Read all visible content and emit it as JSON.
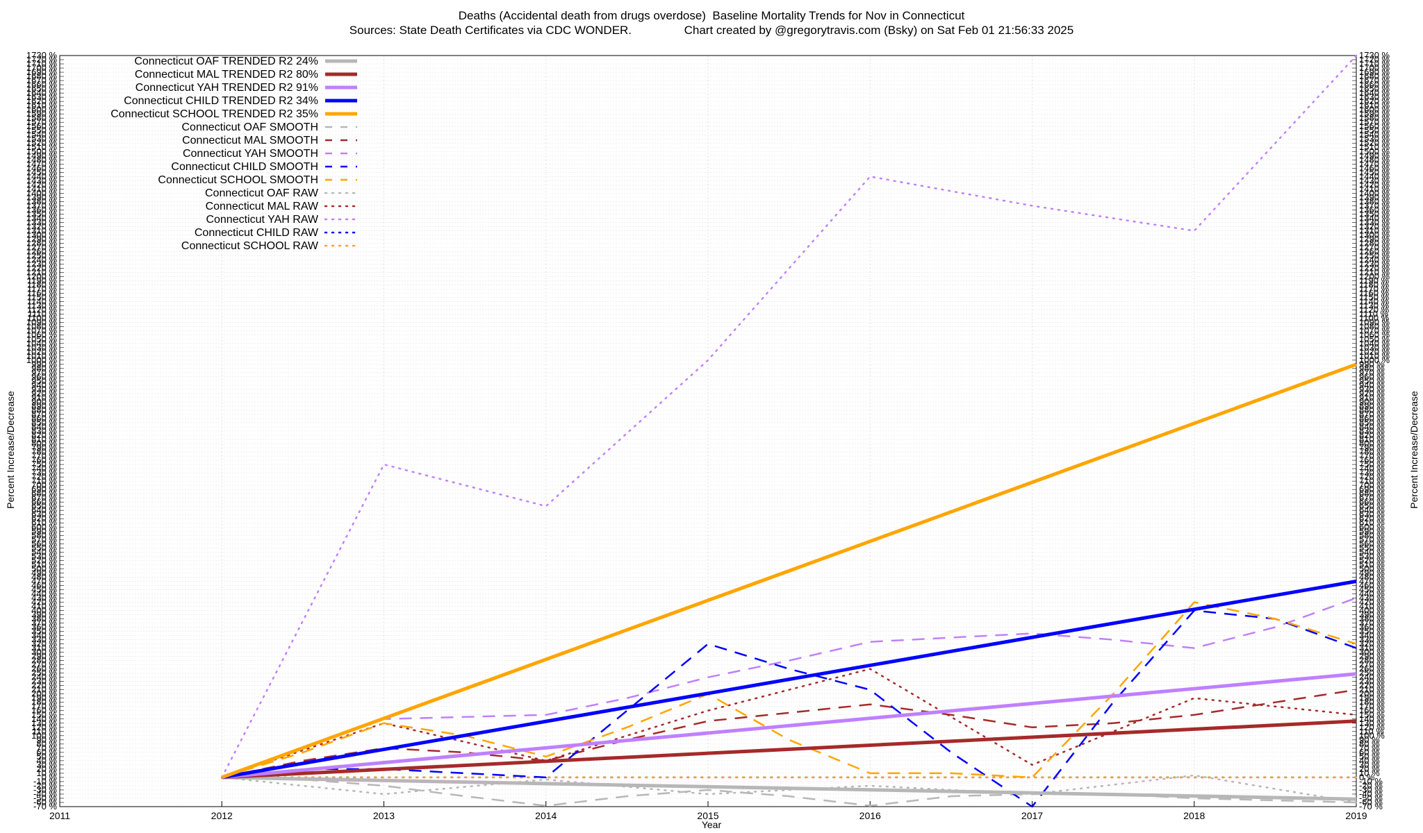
{
  "header": {
    "title": "Deaths (Accidental death from drugs overdose)  Baseline Mortality Trends for Nov in Connecticut",
    "subtitle": "Sources: State Death Certificates via CDC WONDER.                Chart created by @gregorytravis.com (Bsky) on Sat Feb 01 21:56:33 2025"
  },
  "chart_data": {
    "type": "line",
    "title": "Deaths (Accidental death from drugs overdose)  Baseline Mortality Trends for Nov in Connecticut",
    "xlabel": "Year",
    "ylabel": "Percent Increase/Decrease",
    "xlim": [
      2011,
      2019
    ],
    "ylim": [
      -70,
      1730
    ],
    "x_ticks": [
      2011,
      2012,
      2013,
      2014,
      2015,
      2016,
      2017,
      2018,
      2019
    ],
    "y_tick_step": 10,
    "y_tick_suffix": " %",
    "grid": true,
    "legend_position": "top-left",
    "colors": {
      "OAF": "#b7b7b7",
      "MAL": "#a52a2a",
      "YAH": "#bf80ff",
      "CHILD": "#0000ff",
      "SCHOOL": "#ffa500"
    },
    "series": [
      {
        "name": "Connecticut OAF TRENDED R2  24%",
        "group": "OAF",
        "style": "trended",
        "x": [
          2012,
          2019
        ],
        "y": [
          0,
          -52
        ]
      },
      {
        "name": "Connecticut MAL TRENDED R2  80%",
        "group": "MAL",
        "style": "trended",
        "x": [
          2012,
          2019
        ],
        "y": [
          0,
          135
        ]
      },
      {
        "name": "Connecticut YAH TRENDED R2  91%",
        "group": "YAH",
        "style": "trended",
        "x": [
          2012,
          2019
        ],
        "y": [
          0,
          248
        ]
      },
      {
        "name": "Connecticut CHILD TRENDED R2  34%",
        "group": "CHILD",
        "style": "trended",
        "x": [
          2012,
          2019
        ],
        "y": [
          0,
          470
        ]
      },
      {
        "name": "Connecticut SCHOOL TRENDED R2  35%",
        "group": "SCHOOL",
        "style": "trended",
        "x": [
          2012,
          2019
        ],
        "y": [
          0,
          990
        ]
      },
      {
        "name": "Connecticut OAF SMOOTH",
        "group": "OAF",
        "style": "smooth",
        "x": [
          2012,
          2012.5,
          2013,
          2013.5,
          2014,
          2014.5,
          2015,
          2015.5,
          2016,
          2016.5,
          2017,
          2017.5,
          2018,
          2018.5,
          2019
        ],
        "y": [
          0,
          -5,
          -20,
          -45,
          -68,
          -45,
          -30,
          -45,
          -68,
          -45,
          -40,
          -40,
          -50,
          -55,
          -60
        ]
      },
      {
        "name": "Connecticut MAL SMOOTH",
        "group": "MAL",
        "style": "smooth",
        "x": [
          2012,
          2012.5,
          2013,
          2013.5,
          2014,
          2014.5,
          2015,
          2015.5,
          2016,
          2016.5,
          2017,
          2017.5,
          2018,
          2018.5,
          2019
        ],
        "y": [
          0,
          40,
          70,
          60,
          40,
          90,
          135,
          155,
          175,
          150,
          120,
          130,
          150,
          180,
          210
        ]
      },
      {
        "name": "Connecticut YAH SMOOTH",
        "group": "YAH",
        "style": "smooth",
        "x": [
          2012,
          2012.5,
          2013,
          2013.5,
          2014,
          2014.5,
          2015,
          2015.5,
          2016,
          2016.5,
          2017,
          2017.5,
          2018,
          2018.5,
          2019
        ],
        "y": [
          0,
          70,
          140,
          145,
          150,
          190,
          240,
          280,
          325,
          335,
          345,
          330,
          310,
          360,
          430
        ]
      },
      {
        "name": "Connecticut CHILD SMOOTH",
        "group": "CHILD",
        "style": "smooth",
        "x": [
          2012,
          2012.5,
          2013,
          2013.5,
          2014,
          2014.5,
          2015,
          2015.5,
          2016,
          2016.5,
          2017,
          2017.5,
          2018,
          2018.5,
          2019
        ],
        "y": [
          0,
          20,
          20,
          10,
          0,
          160,
          320,
          260,
          210,
          60,
          -70,
          180,
          400,
          380,
          310
        ]
      },
      {
        "name": "Connecticut SCHOOL SMOOTH",
        "group": "SCHOOL",
        "style": "smooth",
        "x": [
          2012,
          2012.5,
          2013,
          2013.5,
          2014,
          2014.5,
          2015,
          2015.5,
          2016,
          2016.5,
          2017,
          2017.5,
          2018,
          2018.5,
          2019
        ],
        "y": [
          0,
          60,
          130,
          100,
          50,
          120,
          200,
          90,
          10,
          10,
          0,
          200,
          420,
          380,
          320
        ]
      },
      {
        "name": "Connecticut OAF RAW",
        "group": "OAF",
        "style": "raw",
        "x": [
          2012,
          2013,
          2014,
          2015,
          2016,
          2017,
          2018,
          2019
        ],
        "y": [
          0,
          -40,
          -5,
          -40,
          -20,
          -40,
          5,
          -60
        ]
      },
      {
        "name": "Connecticut MAL RAW",
        "group": "MAL",
        "style": "raw",
        "x": [
          2012,
          2013,
          2014,
          2015,
          2016,
          2017,
          2018,
          2019
        ],
        "y": [
          0,
          130,
          40,
          160,
          260,
          30,
          190,
          150
        ]
      },
      {
        "name": "Connecticut YAH RAW",
        "group": "YAH",
        "style": "raw",
        "x": [
          2012,
          2013,
          2014,
          2015,
          2016,
          2017,
          2018,
          2019
        ],
        "y": [
          0,
          750,
          650,
          1000,
          1440,
          1370,
          1310,
          1730
        ]
      },
      {
        "name": "Connecticut CHILD RAW",
        "group": "CHILD",
        "style": "raw",
        "x": [
          2012,
          2013,
          2014,
          2015,
          2016,
          2017,
          2018,
          2019
        ],
        "y": [
          0,
          0,
          0,
          0,
          0,
          0,
          0,
          0
        ]
      },
      {
        "name": "Connecticut SCHOOL RAW",
        "group": "SCHOOL",
        "style": "raw",
        "x": [
          2012,
          2013,
          2014,
          2015,
          2016,
          2017,
          2018,
          2019
        ],
        "y": [
          0,
          0,
          0,
          0,
          0,
          0,
          0,
          0
        ]
      }
    ]
  }
}
